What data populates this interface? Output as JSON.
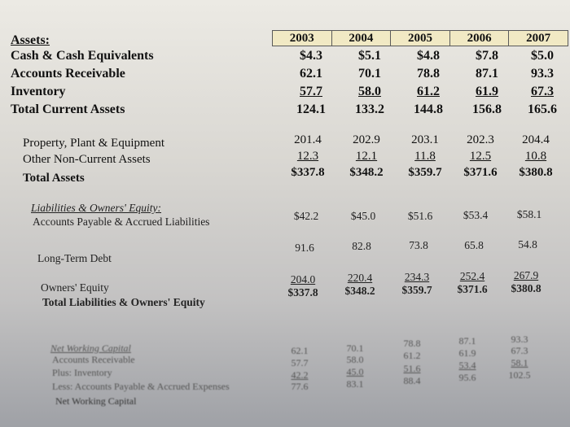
{
  "years": [
    "2003",
    "2004",
    "2005",
    "2006",
    "2007"
  ],
  "assets": {
    "heading": "Assets:",
    "rows": [
      {
        "label": "Cash & Cash Equivalents",
        "values": [
          "$4.3",
          "$5.1",
          "$4.8",
          "$7.8",
          "$5.0"
        ]
      },
      {
        "label": "Accounts Receivable",
        "values": [
          "62.1",
          "70.1",
          "78.8",
          "87.1",
          "93.3"
        ]
      },
      {
        "label": "Inventory",
        "values": [
          "57.7",
          "58.0",
          "61.2",
          "61.9",
          "67.3"
        ]
      },
      {
        "label": "Total Current Assets",
        "values": [
          "124.1",
          "133.2",
          "144.8",
          "156.8",
          "165.6"
        ]
      }
    ]
  },
  "longterm": {
    "rows": [
      {
        "label": "Property, Plant & Equipment",
        "values": [
          "201.4",
          "202.9",
          "203.1",
          "202.3",
          "204.4"
        ]
      },
      {
        "label": "Other Non-Current Assets",
        "values": [
          "12.3",
          "12.1",
          "11.8",
          "12.5",
          "10.8"
        ]
      },
      {
        "label": "Total Assets",
        "values": [
          "$337.8",
          "$348.2",
          "$359.7",
          "$371.6",
          "$380.8"
        ]
      }
    ]
  },
  "liabilities": {
    "heading": "Liabilities & Owners' Equity:",
    "rows": [
      {
        "label": "Accounts Payable & Accrued Liabilities",
        "values": [
          "$42.2",
          "$45.0",
          "$51.6",
          "$53.4",
          "$58.1"
        ]
      },
      {
        "label": "Long-Term Debt",
        "values": [
          "91.6",
          "82.8",
          "73.8",
          "65.8",
          "54.8"
        ]
      },
      {
        "label": "Owners' Equity",
        "values": [
          "204.0",
          "220.4",
          "234.3",
          "252.4",
          "267.9"
        ]
      },
      {
        "label": "Total Liabilities & Owners' Equity",
        "values": [
          "$337.8",
          "$348.2",
          "$359.7",
          "$371.6",
          "$380.8"
        ]
      }
    ]
  },
  "working_capital": {
    "heading": "Net Working Capital",
    "rows": [
      {
        "label": "Accounts Receivable",
        "values": [
          "62.1",
          "70.1",
          "78.8",
          "87.1",
          "93.3"
        ]
      },
      {
        "label": "Plus: Inventory",
        "values": [
          "57.7",
          "58.0",
          "61.2",
          "61.9",
          "67.3"
        ]
      },
      {
        "label": "Less: Accounts Payable & Accrued Expenses",
        "values": [
          "42.2",
          "45.0",
          "51.6",
          "53.4",
          "58.1"
        ]
      },
      {
        "label": "Net Working Capital",
        "values": [
          "77.6",
          "83.1",
          "88.4",
          "95.6",
          "102.5"
        ]
      }
    ]
  }
}
